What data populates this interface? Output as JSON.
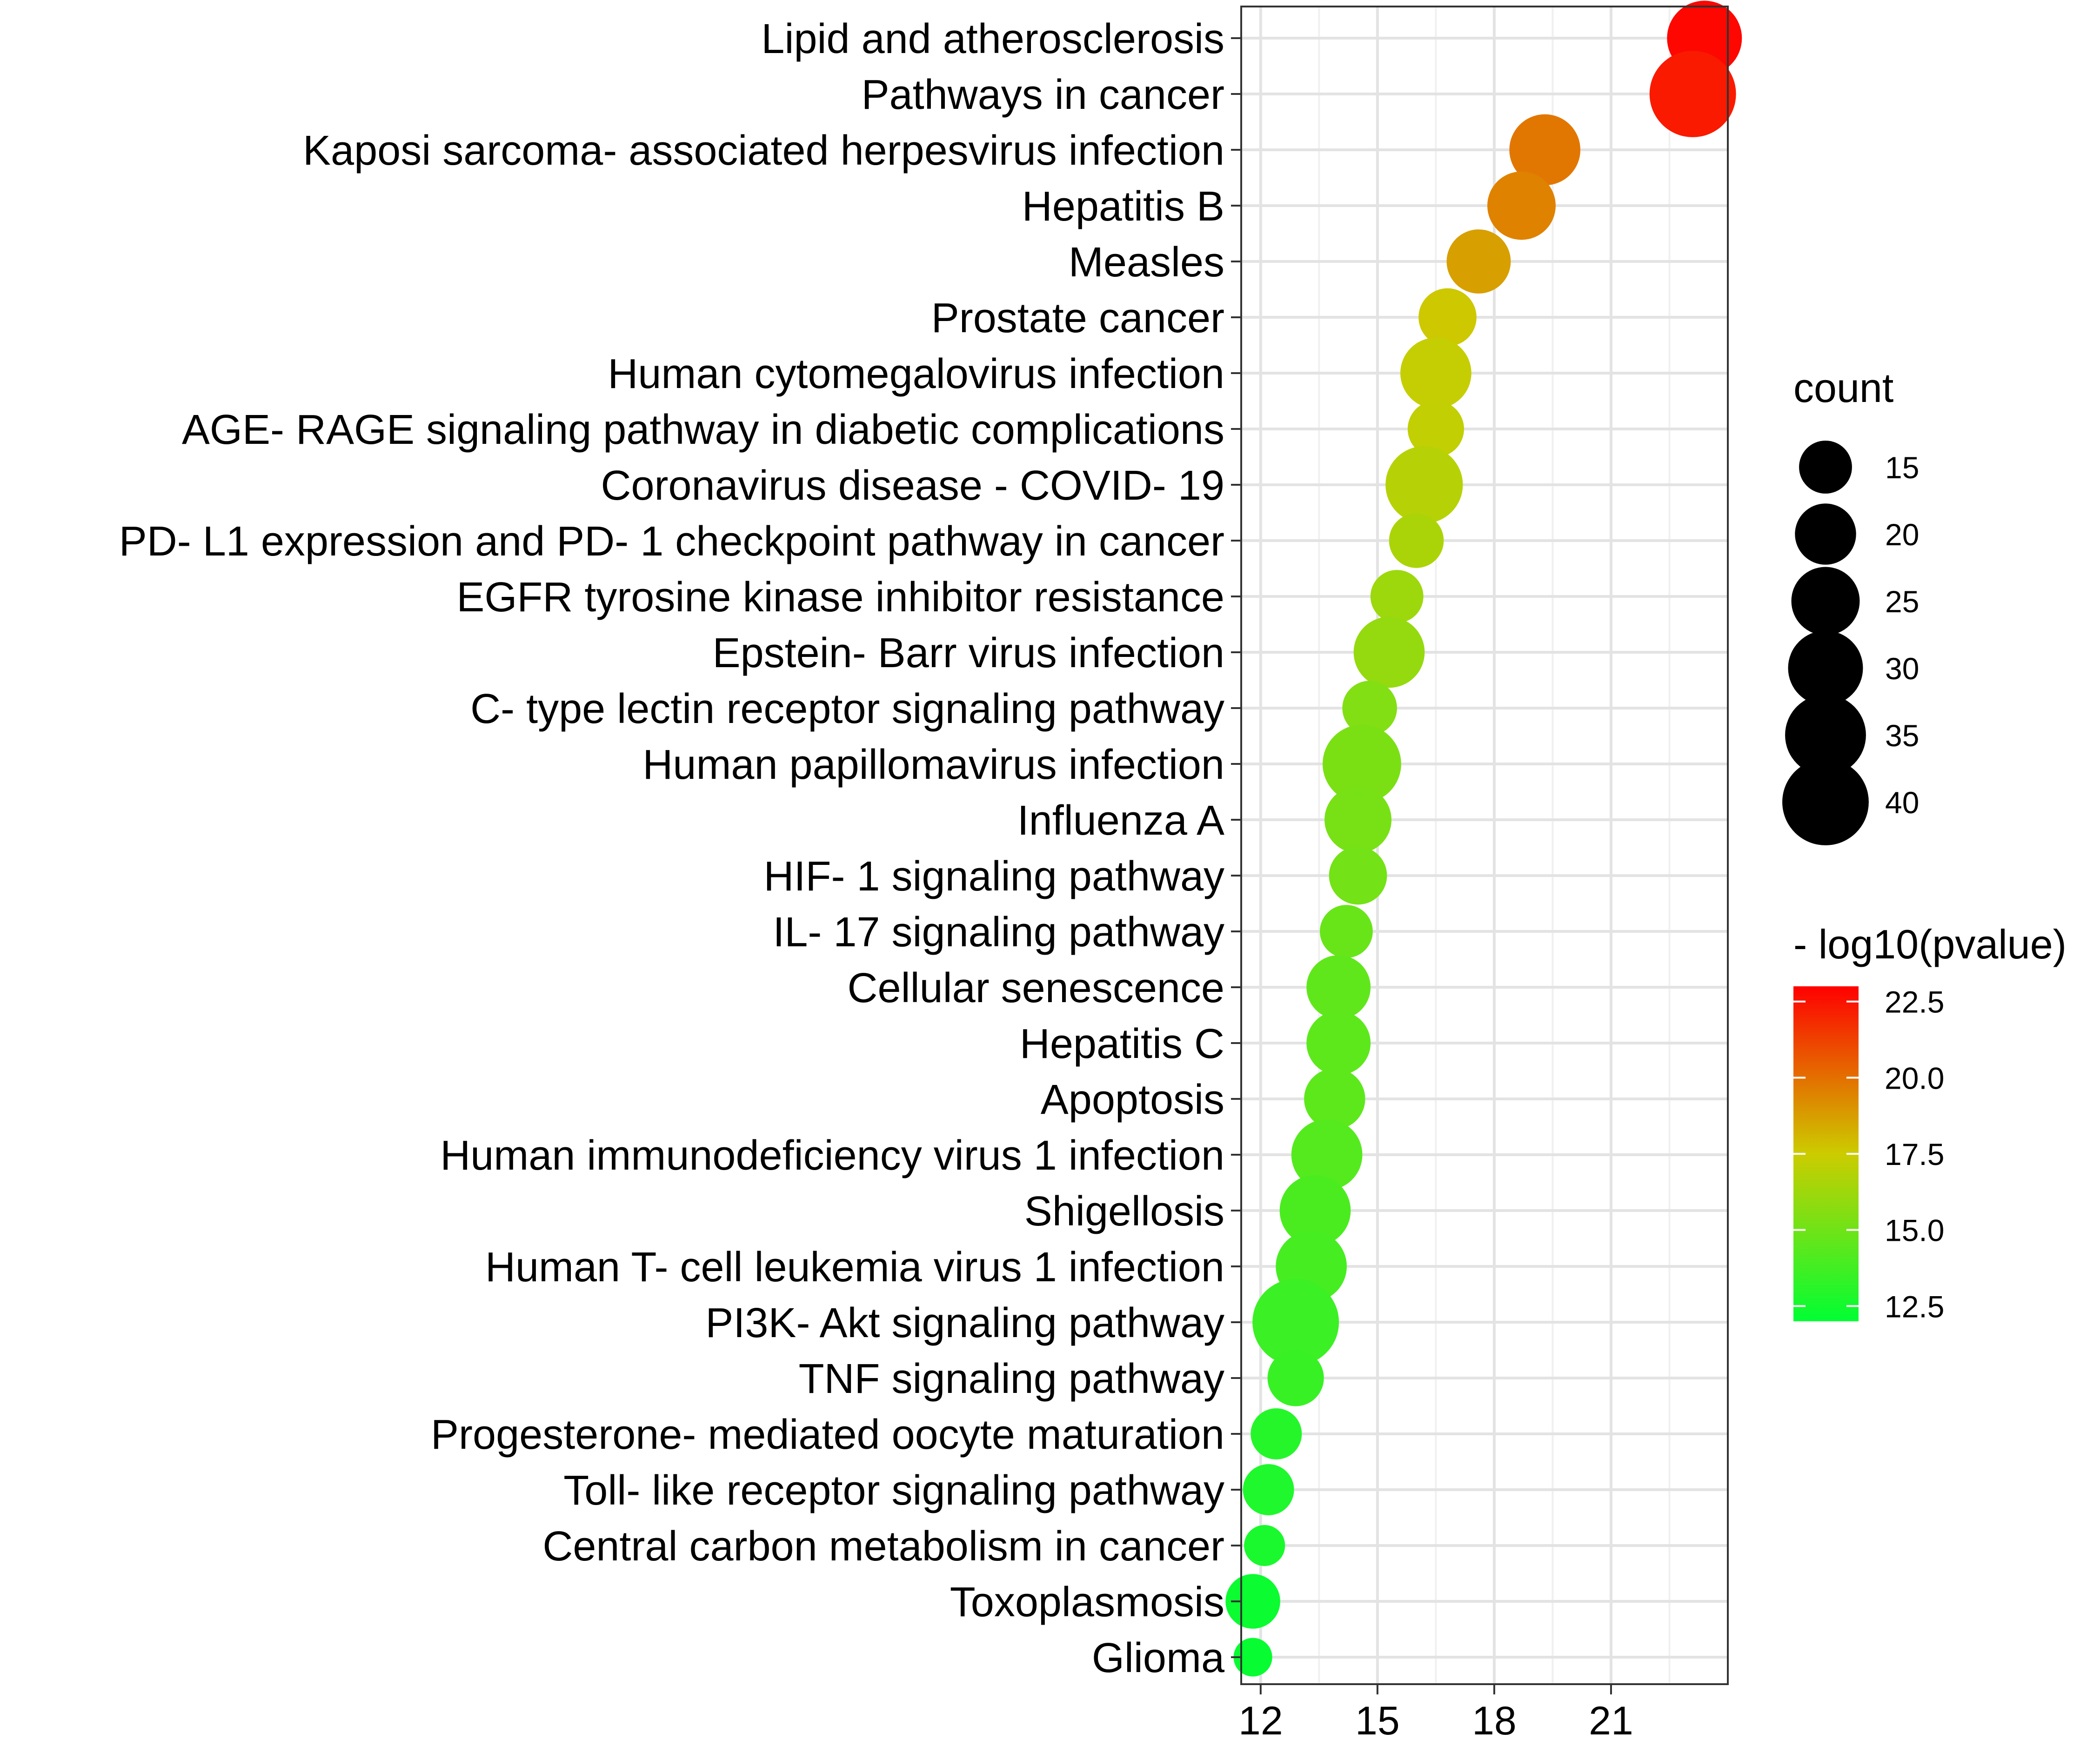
{
  "chart_data": {
    "type": "scatter",
    "subtype": "bubble",
    "title": "",
    "xlabel": "",
    "ylabel": "",
    "xlim": [
      11.5,
      24.0
    ],
    "x_ticks": [
      12,
      15,
      18,
      21
    ],
    "x_tick_labels": [
      "12",
      "15",
      "18",
      "21"
    ],
    "grid": true,
    "points": [
      {
        "label": "Lipid and atherosclerosis",
        "x": 23.4,
        "count": 30,
        "pvalue": 22.8
      },
      {
        "label": "Pathways in cancer",
        "x": 23.1,
        "count": 40,
        "pvalue": 22.3
      },
      {
        "label": "Kaposi sarcoma- associated herpesvirus infection",
        "x": 19.3,
        "count": 27,
        "pvalue": 19.8
      },
      {
        "label": "Hepatitis B",
        "x": 18.7,
        "count": 25,
        "pvalue": 19.5
      },
      {
        "label": "Measles",
        "x": 17.6,
        "count": 22,
        "pvalue": 18.7
      },
      {
        "label": "Prostate cancer",
        "x": 16.8,
        "count": 18,
        "pvalue": 17.6
      },
      {
        "label": "Human cytomegalovirus infection",
        "x": 16.5,
        "count": 27,
        "pvalue": 17.3
      },
      {
        "label": "AGE- RAGE signaling pathway in diabetic complications",
        "x": 16.5,
        "count": 17,
        "pvalue": 17.2
      },
      {
        "label": "Coronavirus disease -  COVID- 19",
        "x": 16.2,
        "count": 32,
        "pvalue": 16.9
      },
      {
        "label": "PD- L1 expression and PD- 1 checkpoint pathway in cancer",
        "x": 16.0,
        "count": 16,
        "pvalue": 16.6
      },
      {
        "label": "EGFR tyrosine kinase inhibitor resistance",
        "x": 15.5,
        "count": 15,
        "pvalue": 16.2
      },
      {
        "label": "Epstein- Barr virus infection",
        "x": 15.3,
        "count": 27,
        "pvalue": 16.0
      },
      {
        "label": "C- type lectin receptor signaling pathway",
        "x": 14.8,
        "count": 16,
        "pvalue": 15.5
      },
      {
        "label": "Human papillomavirus infection",
        "x": 14.6,
        "count": 33,
        "pvalue": 15.3
      },
      {
        "label": "Influenza A",
        "x": 14.5,
        "count": 24,
        "pvalue": 15.2
      },
      {
        "label": "HIF- 1 signaling pathway",
        "x": 14.5,
        "count": 18,
        "pvalue": 15.1
      },
      {
        "label": "IL- 17 signaling pathway",
        "x": 14.2,
        "count": 15,
        "pvalue": 14.8
      },
      {
        "label": "Cellular senescence",
        "x": 14.0,
        "count": 22,
        "pvalue": 14.6
      },
      {
        "label": "Hepatitis C",
        "x": 14.0,
        "count": 22,
        "pvalue": 14.5
      },
      {
        "label": "Apoptosis",
        "x": 13.9,
        "count": 20,
        "pvalue": 14.5
      },
      {
        "label": "Human immunodeficiency virus 1 infection",
        "x": 13.7,
        "count": 27,
        "pvalue": 14.3
      },
      {
        "label": "Shigellosis",
        "x": 13.4,
        "count": 27,
        "pvalue": 14.0
      },
      {
        "label": "Human T- cell leukemia virus 1 infection",
        "x": 13.3,
        "count": 27,
        "pvalue": 13.9
      },
      {
        "label": "PI3K- Akt signaling pathway",
        "x": 12.9,
        "count": 40,
        "pvalue": 13.6
      },
      {
        "label": "TNF signaling pathway",
        "x": 12.9,
        "count": 17,
        "pvalue": 13.5
      },
      {
        "label": "Progesterone- mediated oocyte maturation",
        "x": 12.4,
        "count": 14,
        "pvalue": 13.0
      },
      {
        "label": "Toll- like receptor signaling pathway",
        "x": 12.2,
        "count": 14,
        "pvalue": 12.8
      },
      {
        "label": "Central carbon metabolism in cancer",
        "x": 12.1,
        "count": 9,
        "pvalue": 12.7
      },
      {
        "label": "Toxoplasmosis",
        "x": 11.8,
        "count": 16,
        "pvalue": 12.3
      },
      {
        "label": "Glioma",
        "x": 11.8,
        "count": 8,
        "pvalue": 12.2
      }
    ],
    "size_legend": {
      "title": "count",
      "values": [
        15,
        20,
        25,
        30,
        35,
        40
      ],
      "labels": [
        "15",
        "20",
        "25",
        "30",
        "35",
        "40"
      ]
    },
    "color_legend": {
      "title": "- log10(pvalue)",
      "range": [
        12.0,
        23.0
      ],
      "ticks": [
        12.5,
        15.0,
        17.5,
        20.0,
        22.5
      ],
      "tick_labels": [
        "12.5",
        "15.0",
        "17.5",
        "20.0",
        "22.5"
      ],
      "low_color": "#00ff33",
      "high_color": "#ff0000"
    }
  }
}
